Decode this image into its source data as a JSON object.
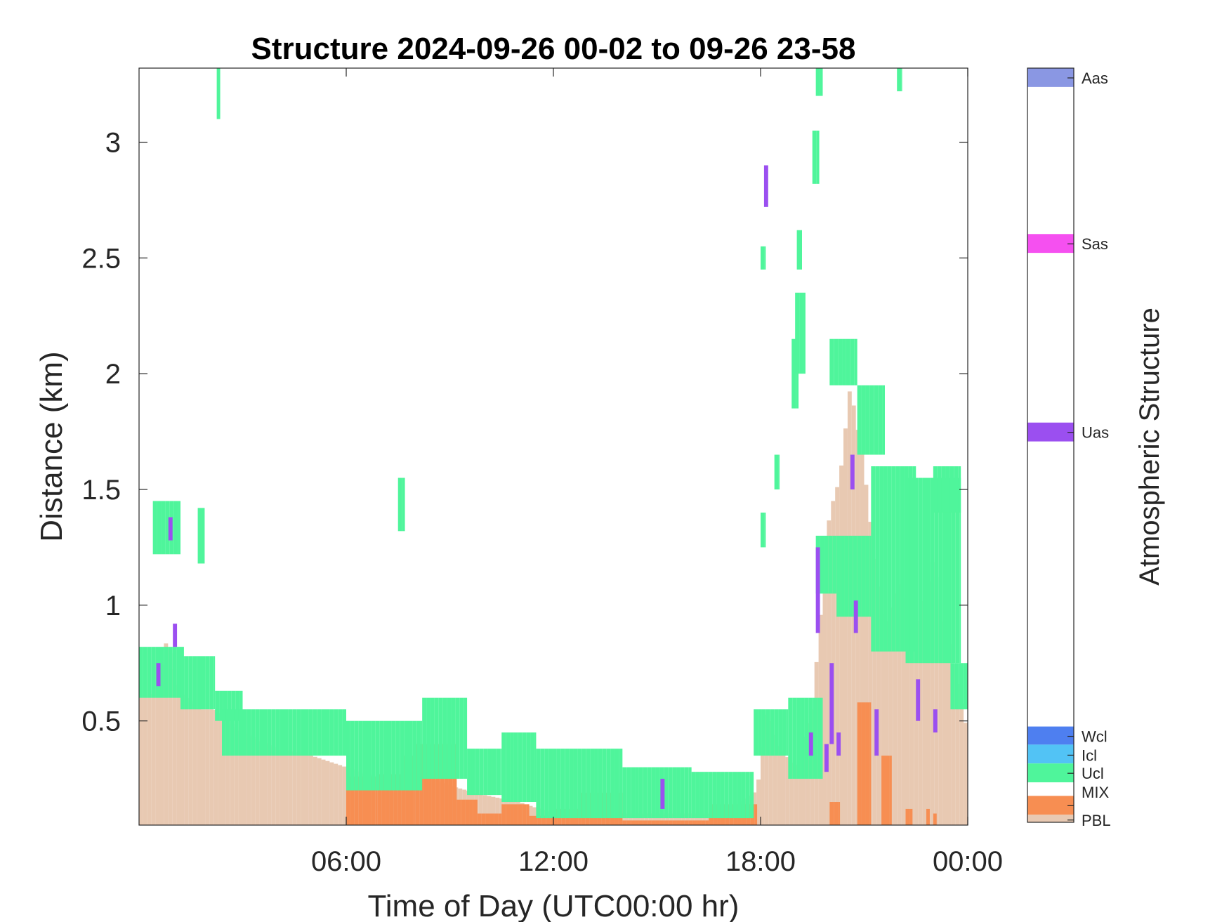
{
  "chart_data": {
    "type": "heatmap",
    "title": "Structure 2024-09-26 00-02 to 09-26 23-58",
    "xlabel": "Time of Day (UTC00:00 hr)",
    "ylabel": "Distance (km)",
    "xlim_hours": [
      0,
      24
    ],
    "ylim_km": [
      0.05,
      3.32
    ],
    "xticks": [
      {
        "hour": 6,
        "label": "06:00"
      },
      {
        "hour": 12,
        "label": "12:00"
      },
      {
        "hour": 18,
        "label": "18:00"
      },
      {
        "hour": 24,
        "label": "00:00"
      }
    ],
    "yticks": [
      {
        "km": 0.5,
        "label": "0.5"
      },
      {
        "km": 1,
        "label": "1"
      },
      {
        "km": 1.5,
        "label": "1.5"
      },
      {
        "km": 2,
        "label": "2"
      },
      {
        "km": 2.5,
        "label": "2.5"
      },
      {
        "km": 3,
        "label": "3"
      }
    ],
    "colorbar": {
      "title": "Atmospheric Structure",
      "classes": [
        {
          "code": "Aas",
          "color": "#8a97e3"
        },
        {
          "code": "Sas",
          "color": "#f550f0"
        },
        {
          "code": "Uas",
          "color": "#9b4ff0"
        },
        {
          "code": "Wcl",
          "color": "#4e7ff0"
        },
        {
          "code": "Icl",
          "color": "#52c3f5"
        },
        {
          "code": "Ucl",
          "color": "#4ff59b"
        },
        {
          "code": "MIX",
          "color": "#f78e52"
        },
        {
          "code": "PBL",
          "color": "#e8c9b2"
        }
      ]
    },
    "layers": [
      {
        "class": "PBL",
        "samples": [
          [
            0,
            0.6
          ],
          [
            0.5,
            0.62
          ],
          [
            0.8,
            0.85
          ],
          [
            1.2,
            0.62
          ],
          [
            1.8,
            0.55
          ],
          [
            2.2,
            0.55
          ],
          [
            3,
            0.45
          ],
          [
            4,
            0.38
          ],
          [
            5,
            0.35
          ],
          [
            6,
            0.3
          ],
          [
            7,
            0.25
          ],
          [
            8,
            0.28
          ],
          [
            9,
            0.22
          ],
          [
            10,
            0.18
          ],
          [
            11,
            0.15
          ],
          [
            12,
            0.1
          ],
          [
            13,
            0.1
          ],
          [
            14,
            0.1
          ],
          [
            15,
            0.1
          ],
          [
            16,
            0.1
          ],
          [
            17,
            0.1
          ],
          [
            17.9,
            0.2
          ],
          [
            18.2,
            0.55
          ],
          [
            18.5,
            0.4
          ],
          [
            19,
            0.3
          ],
          [
            19.5,
            0.55
          ],
          [
            20,
            1.4
          ],
          [
            20.3,
            1.55
          ],
          [
            20.6,
            1.95
          ],
          [
            21,
            1.6
          ],
          [
            21.3,
            1.2
          ],
          [
            21.6,
            0.9
          ],
          [
            22,
            1.1
          ],
          [
            22.5,
            0.85
          ],
          [
            23,
            1.2
          ],
          [
            23.5,
            0.8
          ],
          [
            24,
            0.45
          ]
        ]
      },
      {
        "class": "MIX",
        "spans": [
          [
            6.0,
            6.9,
            0.26
          ],
          [
            6.9,
            7.6,
            0.27
          ],
          [
            7.6,
            8.0,
            0.35
          ],
          [
            8.0,
            9.2,
            0.4
          ],
          [
            9.2,
            9.8,
            0.16
          ],
          [
            9.8,
            10.5,
            0.1
          ],
          [
            10.5,
            11.3,
            0.14
          ],
          [
            11.3,
            12.0,
            0.09
          ],
          [
            12.0,
            12.8,
            0.12
          ],
          [
            12.8,
            14.0,
            0.19
          ],
          [
            14.0,
            16.5,
            0.07
          ],
          [
            16.5,
            17.9,
            0.14
          ],
          [
            20.0,
            20.3,
            0.15
          ],
          [
            20.8,
            21.2,
            0.58
          ],
          [
            21.5,
            21.8,
            0.35
          ],
          [
            22.2,
            22.4,
            0.12
          ],
          [
            22.8,
            22.9,
            0.12
          ],
          [
            23.0,
            23.1,
            0.1
          ]
        ]
      },
      {
        "class": "Ucl",
        "bands": [
          [
            0.0,
            1.3,
            0.6,
            0.82
          ],
          [
            0.4,
            1.2,
            1.22,
            1.45
          ],
          [
            1.2,
            2.2,
            0.55,
            0.78
          ],
          [
            1.7,
            1.9,
            1.18,
            1.42
          ],
          [
            2.2,
            3.0,
            0.5,
            0.63
          ],
          [
            2.25,
            2.35,
            3.1,
            3.32
          ],
          [
            2.4,
            6.0,
            0.35,
            0.55
          ],
          [
            6.0,
            8.2,
            0.2,
            0.5
          ],
          [
            7.5,
            7.7,
            1.32,
            1.55
          ],
          [
            8.2,
            9.5,
            0.25,
            0.6
          ],
          [
            9.5,
            10.5,
            0.18,
            0.38
          ],
          [
            10.5,
            11.5,
            0.15,
            0.45
          ],
          [
            11.5,
            14.0,
            0.08,
            0.38
          ],
          [
            14.0,
            16.0,
            0.08,
            0.3
          ],
          [
            16.0,
            17.8,
            0.08,
            0.28
          ],
          [
            17.8,
            18.8,
            0.35,
            0.55
          ],
          [
            18.8,
            19.8,
            0.25,
            0.6
          ],
          [
            19.6,
            20.2,
            1.05,
            1.3
          ],
          [
            20.0,
            20.8,
            1.95,
            2.15
          ],
          [
            20.2,
            21.2,
            0.95,
            1.3
          ],
          [
            20.8,
            21.6,
            1.65,
            1.95
          ],
          [
            21.2,
            22.5,
            0.8,
            1.6
          ],
          [
            22.2,
            23.8,
            0.75,
            1.55
          ],
          [
            23.0,
            23.8,
            1.4,
            1.6
          ],
          [
            23.5,
            24.0,
            0.55,
            0.75
          ],
          [
            18.0,
            18.15,
            2.45,
            2.55
          ],
          [
            18.9,
            19.1,
            1.85,
            2.15
          ],
          [
            19.0,
            19.3,
            2.0,
            2.35
          ],
          [
            18.4,
            18.55,
            1.5,
            1.65
          ],
          [
            19.6,
            19.8,
            3.2,
            3.32
          ],
          [
            19.5,
            19.7,
            2.82,
            3.05
          ],
          [
            21.95,
            22.1,
            3.22,
            3.32
          ],
          [
            19.05,
            19.2,
            2.45,
            2.62
          ],
          [
            18.0,
            18.15,
            1.25,
            1.4
          ]
        ]
      },
      {
        "class": "Uas",
        "bars": [
          [
            0.5,
            0.65,
            0.75
          ],
          [
            0.85,
            1.28,
            1.38
          ],
          [
            0.98,
            0.82,
            0.92
          ],
          [
            15.1,
            0.12,
            0.25
          ],
          [
            18.1,
            2.72,
            2.9
          ],
          [
            19.4,
            0.35,
            0.45
          ],
          [
            19.6,
            0.88,
            1.25
          ],
          [
            19.85,
            0.28,
            0.4
          ],
          [
            20.0,
            0.4,
            0.75
          ],
          [
            20.2,
            0.35,
            0.45
          ],
          [
            20.6,
            1.5,
            1.65
          ],
          [
            20.7,
            0.88,
            1.02
          ],
          [
            21.3,
            0.35,
            0.55
          ],
          [
            22.5,
            0.5,
            0.68
          ],
          [
            23.0,
            0.45,
            0.55
          ]
        ]
      }
    ]
  }
}
